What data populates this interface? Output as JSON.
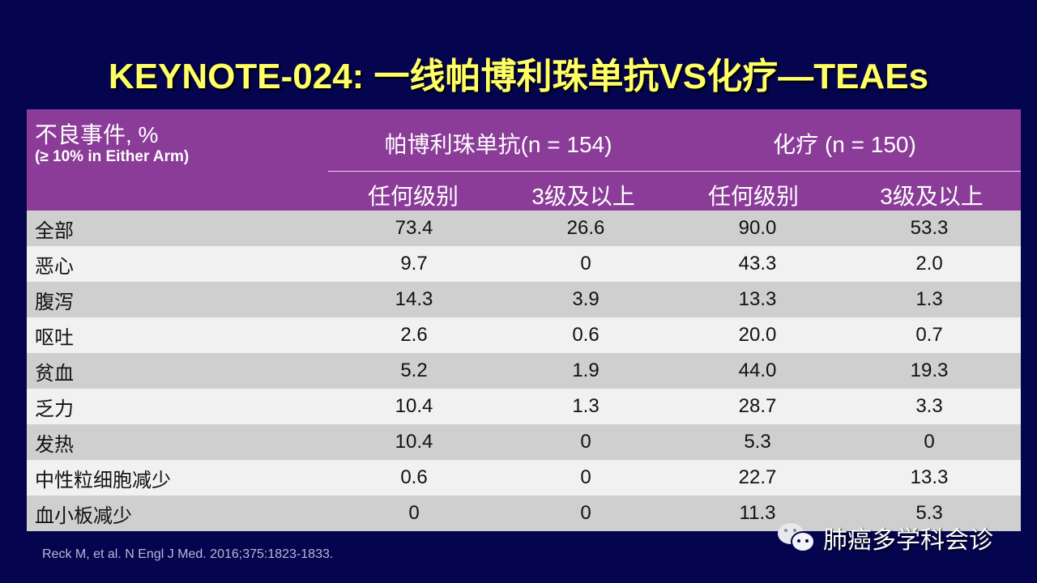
{
  "title": "KEYNOTE-024: 一线帕博利珠单抗VS化疗—TEAEs",
  "header": {
    "label": "不良事件, %",
    "sublabel": "(≥ 10%  in Either Arm)",
    "group1": "帕博利珠单抗(n = 154)",
    "group2": "化疗 (n = 150)",
    "sub": [
      "任何级别",
      "3级及以上",
      "任何级别",
      "3级及以上"
    ]
  },
  "rows": [
    {
      "name": "全部",
      "v": [
        "73.4",
        "26.6",
        "90.0",
        "53.3"
      ]
    },
    {
      "name": "恶心",
      "v": [
        "9.7",
        "0",
        "43.3",
        "2.0"
      ]
    },
    {
      "name": "腹泻",
      "v": [
        "14.3",
        "3.9",
        "13.3",
        "1.3"
      ]
    },
    {
      "name": "呕吐",
      "v": [
        "2.6",
        "0.6",
        "20.0",
        "0.7"
      ]
    },
    {
      "name": "贫血",
      "v": [
        "5.2",
        "1.9",
        "44.0",
        "19.3"
      ]
    },
    {
      "name": "乏力",
      "v": [
        "10.4",
        "1.3",
        "28.7",
        "3.3"
      ]
    },
    {
      "name": "发热",
      "v": [
        "10.4",
        "0",
        "5.3",
        "0"
      ]
    },
    {
      "name": "中性粒细胞减少",
      "v": [
        "0.6",
        "0",
        "22.7",
        "13.3"
      ]
    },
    {
      "name": "血小板减少",
      "v": [
        "0",
        "0",
        "11.3",
        "5.3"
      ]
    }
  ],
  "reference": "Reck M, et al. N Engl J Med. 2016;375:1823-1833.",
  "watermark": "肺癌多学科会诊"
}
